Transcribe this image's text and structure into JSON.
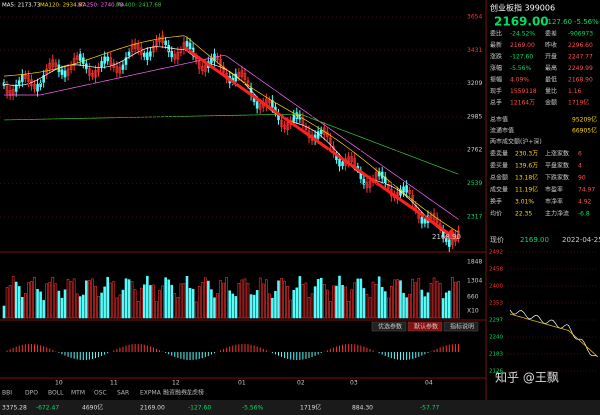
{
  "ma_labels": [
    "MA5: 2173.73",
    "MA120: 2934.87",
    "MA250: 2740.78",
    "MA400: 2417.68"
  ],
  "price_axis": [
    "3654",
    "3431",
    "3209",
    "2985",
    "2762",
    "2539",
    "2317"
  ],
  "low_label": "2168.90",
  "volume_axis": [
    "1848",
    "1304",
    "660",
    "X10"
  ],
  "macd_buttons": [
    "优选参数",
    "默认参数",
    "指标说明"
  ],
  "date_axis": [
    "10",
    "11",
    "12",
    "01",
    "02",
    "03",
    "04"
  ],
  "indicator_tabs": [
    "BBI",
    "DPO",
    "BOLL",
    "MTM",
    "OSC",
    "SAR",
    "EXPMA",
    "融资融券",
    "龙虎榜"
  ],
  "status_bar": [
    "3375.28",
    "-672.47",
    "4690亿",
    "2169.00",
    "-127.60",
    "-5.56%",
    "1719亿",
    "884.30",
    "-57.77"
  ],
  "quote": {
    "title": "创业板指 399006",
    "price": "2169.00",
    "change": "-127.60",
    "change_pct": "-5.56%",
    "rows": [
      [
        "委比",
        "-24.52%",
        "委差",
        "-906973"
      ],
      [
        "最新",
        "2169.00",
        "昨收",
        "2296.60"
      ],
      [
        "涨跌",
        "-127.60",
        "开盘",
        "2247.77"
      ],
      [
        "涨幅",
        "-5.56%",
        "最高",
        "2249.99"
      ],
      [
        "振幅",
        "4.09%",
        "最低",
        "2168.90"
      ],
      [
        "现手",
        "1559118",
        "量比",
        "1.16"
      ],
      [
        "总手",
        "12164万",
        "金额",
        "1719亿"
      ]
    ],
    "summary": [
      [
        "总市值",
        "95209亿"
      ],
      [
        "流通市值",
        "66905亿"
      ]
    ],
    "note": "两市成交额(沪+深)",
    "stats": [
      [
        "委卖量",
        "230.3万",
        "上涨家数",
        "6"
      ],
      [
        "委买量",
        "139.6万",
        "平盘家数",
        "4"
      ],
      [
        "总金额",
        "13.18亿",
        "下跌家数",
        "90"
      ],
      [
        "成交量",
        "11.19亿",
        "市盈率",
        "74.97"
      ],
      [
        "换手",
        "3.01%",
        "市净率",
        "4.92"
      ],
      [
        "均价",
        "22.35",
        "主力净流",
        "-6.8"
      ]
    ]
  },
  "mini_chart": {
    "header": "现价",
    "price": "2169.00",
    "date": "2022-04-25",
    "axis": [
      "2492",
      "2458",
      "2400",
      "2353",
      "2297",
      "2240",
      "2183",
      "2126"
    ]
  },
  "watermark": "知乎 @王飘"
}
